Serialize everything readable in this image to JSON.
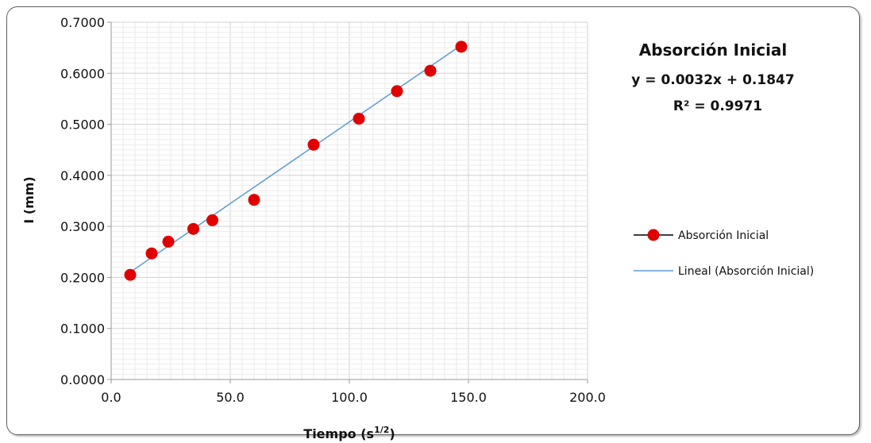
{
  "chart_data": {
    "type": "scatter",
    "xlabel": "Tiempo (s",
    "xlabel_sup": "1/2",
    "xlabel_end": ")",
    "ylabel": "I (mm)",
    "xlim": [
      0,
      200
    ],
    "ylim": [
      0,
      0.7
    ],
    "x_ticks": [
      "0.0",
      "50.0",
      "100.0",
      "150.0",
      "200.0"
    ],
    "y_ticks": [
      "0.0000",
      "0.1000",
      "0.2000",
      "0.3000",
      "0.4000",
      "0.5000",
      "0.6000",
      "0.7000"
    ],
    "x_tick_values": [
      0,
      50,
      100,
      150,
      200
    ],
    "y_tick_values": [
      0,
      0.1,
      0.2,
      0.3,
      0.4,
      0.5,
      0.6,
      0.7
    ],
    "grid": true,
    "series": [
      {
        "name": "Absorción Inicial",
        "color": "#e00000",
        "x": [
          8,
          17,
          24,
          34.5,
          42.5,
          60,
          85,
          104,
          120,
          134,
          147
        ],
        "y": [
          0.205,
          0.247,
          0.27,
          0.295,
          0.312,
          0.352,
          0.46,
          0.511,
          0.565,
          0.605,
          0.652
        ]
      }
    ],
    "trendline": {
      "name": "Lineal (Absorción Inicial)",
      "color": "#5b9bd5",
      "x_range": [
        8,
        147
      ],
      "slope": 0.0032,
      "intercept": 0.1847
    },
    "annotation": {
      "title": "Absorción Inicial",
      "equation": "y = 0.0032x + 0.1847",
      "r2": "R² = 0.9971"
    },
    "legend": {
      "placement": "right",
      "items": [
        {
          "label": "Absorción Inicial"
        },
        {
          "label": "Lineal (Absorción Inicial)"
        }
      ]
    }
  }
}
